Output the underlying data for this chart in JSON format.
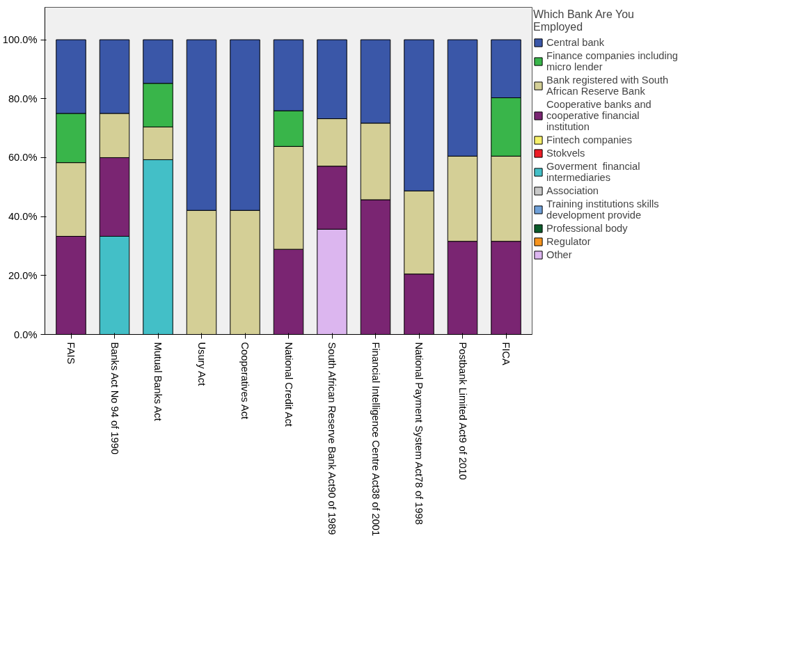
{
  "chart_data": {
    "type": "bar",
    "stacked": true,
    "legend_title": "Which Bank Are You Employed",
    "legend": "right",
    "grid": false,
    "categories": [
      "FAIS",
      "Banks Act No 94 of 1990",
      "Mutual Banks Act",
      "Usury Act",
      "Cooperatives Act",
      "National Credit Act",
      "South African Reserve Bank Act90 of 1989",
      "Financial Intelligence Centre Act38 of 2001",
      "National Payment System Act78 of 1998",
      "Postbank Limited Act9 of 2010",
      "FICA"
    ],
    "ylim": [
      0,
      111
    ],
    "yticks": [
      {
        "value": 0,
        "label": "0.0%"
      },
      {
        "value": 20,
        "label": "20.0%"
      },
      {
        "value": 40,
        "label": "40.0%"
      },
      {
        "value": 60,
        "label": "60.0%"
      },
      {
        "value": 80,
        "label": "80.0%"
      },
      {
        "value": 100,
        "label": "100.0%"
      }
    ],
    "series": [
      {
        "name": "Other",
        "color": "#dcb6ef",
        "values": [
          null,
          null,
          null,
          null,
          null,
          null,
          35.7,
          null,
          null,
          null,
          null
        ]
      },
      {
        "name": "Regulator",
        "color": "#f7941d",
        "values": [
          null,
          null,
          null,
          null,
          null,
          null,
          null,
          null,
          null,
          null,
          null
        ]
      },
      {
        "name": "Professional body",
        "color": "#0b5b2a",
        "values": [
          null,
          null,
          null,
          null,
          null,
          null,
          null,
          null,
          null,
          null,
          null
        ]
      },
      {
        "name": "Training institutions skills development provide",
        "color": "#6fa0d8",
        "values": [
          null,
          null,
          null,
          null,
          null,
          null,
          null,
          null,
          null,
          null,
          null
        ]
      },
      {
        "name": "Association",
        "color": "#c8c8c8",
        "values": [
          null,
          null,
          null,
          null,
          null,
          null,
          null,
          null,
          null,
          null,
          null
        ]
      },
      {
        "name": "Goverment  financial intermediaries",
        "color": "#43bfc7",
        "values": [
          null,
          33.3,
          59.3,
          null,
          null,
          null,
          null,
          null,
          null,
          null,
          null
        ]
      },
      {
        "name": "Stokvels",
        "color": "#ee1c25",
        "values": [
          null,
          null,
          null,
          null,
          null,
          null,
          null,
          null,
          null,
          null,
          null
        ]
      },
      {
        "name": "Fintech companies",
        "color": "#f7f06a",
        "values": [
          null,
          null,
          null,
          null,
          null,
          null,
          null,
          null,
          null,
          null,
          null
        ]
      },
      {
        "name": "Cooperative banks and cooperative financial institution",
        "color": "#7a2572",
        "values": [
          33.3,
          26.7,
          null,
          null,
          null,
          28.9,
          21.4,
          45.7,
          20.5,
          31.6,
          31.6
        ]
      },
      {
        "name": "Bank registered with South African Reserve Bank",
        "color": "#d4cf96",
        "values": [
          25.0,
          15.0,
          11.1,
          42.1,
          42.1,
          34.9,
          16.1,
          26.0,
          28.2,
          28.9,
          28.9
        ]
      },
      {
        "name": "Finance companies including micro lender",
        "color": "#39b54a",
        "values": [
          16.7,
          null,
          14.8,
          null,
          null,
          12.1,
          null,
          null,
          null,
          null,
          19.8
        ]
      },
      {
        "name": "Central bank",
        "color": "#3a57a8",
        "values": [
          25.0,
          25.0,
          14.8,
          57.9,
          57.9,
          24.1,
          26.8,
          28.3,
          51.3,
          39.5,
          19.7
        ]
      }
    ]
  }
}
